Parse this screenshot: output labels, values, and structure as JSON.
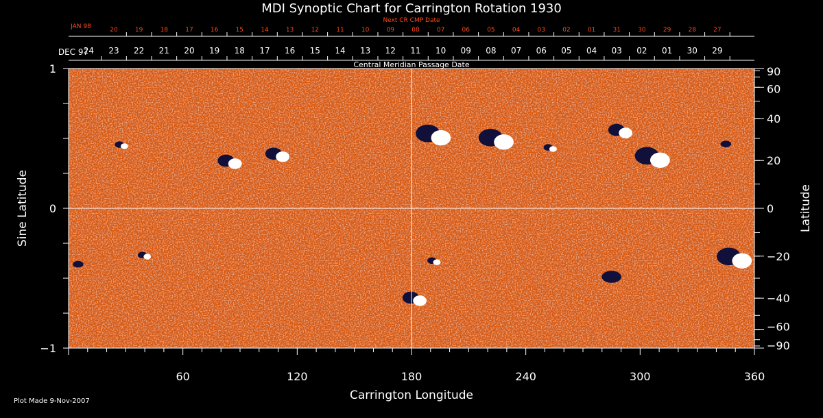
{
  "chart_data": {
    "type": "heatmap",
    "title": "MDI Synoptic Chart for Carrington Rotation 1930",
    "xlabel": "Carrington Longitude",
    "ylabel_left": "Sine Latitude",
    "ylabel_right": "Latitude",
    "xlim": [
      0,
      360
    ],
    "ylim": [
      -1,
      1
    ],
    "x_ticks": [
      60,
      120,
      180,
      240,
      300,
      360
    ],
    "y_ticks_left": [
      {
        "value": 1,
        "label": "1"
      },
      {
        "value": 0,
        "label": "0"
      },
      {
        "value": -1,
        "label": "−1"
      }
    ],
    "y_ticks_right": [
      {
        "lat": 90,
        "label": "90"
      },
      {
        "lat": 60,
        "label": "60"
      },
      {
        "lat": 40,
        "label": "40"
      },
      {
        "lat": 20,
        "label": "20"
      },
      {
        "lat": 0,
        "label": "0"
      },
      {
        "lat": -20,
        "label": "−20"
      },
      {
        "lat": -40,
        "label": "−40"
      },
      {
        "lat": -60,
        "label": "−60"
      },
      {
        "lat": -90,
        "label": "−90"
      }
    ],
    "grid": "crosshair at longitude 180 and sine latitude 0",
    "top_axis_label": "Central Meridian Passage Date",
    "top_axis": {
      "start_label": "DEC 97",
      "dates": [
        "24",
        "23",
        "22",
        "21",
        "20",
        "19",
        "18",
        "17",
        "16",
        "15",
        "14",
        "13",
        "12",
        "11",
        "10",
        "09",
        "08",
        "07",
        "06",
        "05",
        "04",
        "03",
        "02",
        "01",
        "30",
        "29"
      ]
    },
    "next_axis": {
      "label": "Next CR CMP Date",
      "start_label": "JAN 98",
      "dates": [
        "20",
        "19",
        "18",
        "17",
        "16",
        "15",
        "14",
        "13",
        "12",
        "11",
        "10",
        "09",
        "08",
        "07",
        "06",
        "05",
        "04",
        "03",
        "02",
        "01",
        "31",
        "30",
        "29",
        "28",
        "27"
      ]
    },
    "active_regions": [
      {
        "lon": 28,
        "sinlat": 0.45,
        "polarity": "mixed",
        "size": "small"
      },
      {
        "lon": 85,
        "sinlat": 0.33,
        "polarity": "mixed",
        "size": "medium"
      },
      {
        "lon": 110,
        "sinlat": 0.38,
        "polarity": "mixed",
        "size": "medium"
      },
      {
        "lon": 192,
        "sinlat": 0.52,
        "polarity": "mixed",
        "size": "large"
      },
      {
        "lon": 225,
        "sinlat": 0.49,
        "polarity": "mixed",
        "size": "large"
      },
      {
        "lon": 253,
        "sinlat": 0.43,
        "polarity": "mixed",
        "size": "small"
      },
      {
        "lon": 290,
        "sinlat": 0.55,
        "polarity": "mixed",
        "size": "medium"
      },
      {
        "lon": 307,
        "sinlat": 0.36,
        "polarity": "mixed",
        "size": "large"
      },
      {
        "lon": 345,
        "sinlat": 0.46,
        "polarity": "negative",
        "size": "small"
      },
      {
        "lon": 40,
        "sinlat": -0.34,
        "polarity": "mixed",
        "size": "small"
      },
      {
        "lon": 5,
        "sinlat": -0.4,
        "polarity": "negative",
        "size": "small"
      },
      {
        "lon": 182,
        "sinlat": -0.65,
        "polarity": "mixed",
        "size": "medium"
      },
      {
        "lon": 192,
        "sinlat": -0.38,
        "polarity": "mixed",
        "size": "small"
      },
      {
        "lon": 285,
        "sinlat": -0.49,
        "polarity": "negative",
        "size": "medium"
      },
      {
        "lon": 350,
        "sinlat": -0.36,
        "polarity": "mixed",
        "size": "large"
      }
    ],
    "colors": {
      "background_field": "#d85a10",
      "positive_flux": "#ffffff",
      "negative_flux": "#10103a",
      "next_axis_text": "#ff4a1a",
      "axes": "#ffffff"
    }
  },
  "footer": {
    "plot_made": "Plot Made  9-Nov-2007"
  }
}
